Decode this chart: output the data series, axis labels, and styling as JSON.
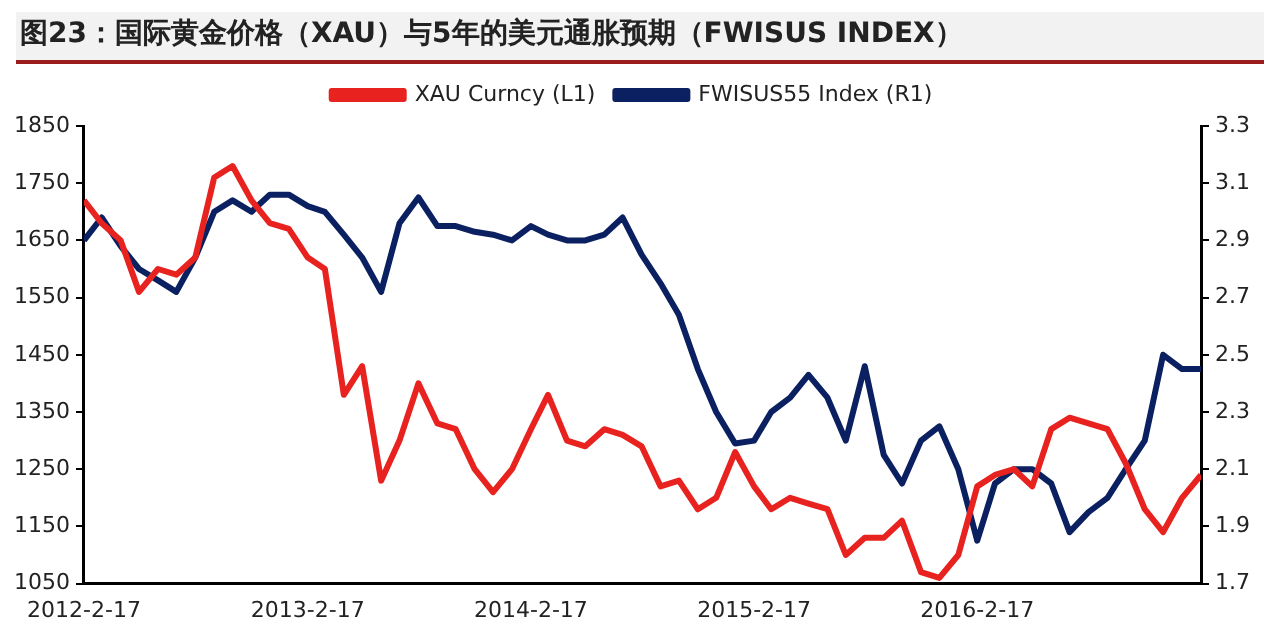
{
  "chart_data": {
    "type": "line",
    "title": "图23：国际黄金价格（XAU）与5年的美元通胀预期（FWISUS INDEX）",
    "x": [
      "2012-02-17",
      "2012-03-17",
      "2012-04-17",
      "2012-05-17",
      "2012-06-17",
      "2012-07-17",
      "2012-08-17",
      "2012-09-17",
      "2012-10-17",
      "2012-11-17",
      "2012-12-17",
      "2013-01-17",
      "2013-02-17",
      "2013-03-17",
      "2013-04-17",
      "2013-05-17",
      "2013-06-17",
      "2013-07-17",
      "2013-08-17",
      "2013-09-17",
      "2013-10-17",
      "2013-11-17",
      "2013-12-17",
      "2014-01-17",
      "2014-02-17",
      "2014-03-17",
      "2014-04-17",
      "2014-05-17",
      "2014-06-17",
      "2014-07-17",
      "2014-08-17",
      "2014-09-17",
      "2014-10-17",
      "2014-11-17",
      "2014-12-17",
      "2015-01-17",
      "2015-02-17",
      "2015-03-17",
      "2015-04-17",
      "2015-05-17",
      "2015-06-17",
      "2015-07-17",
      "2015-08-17",
      "2015-09-17",
      "2015-10-17",
      "2015-11-17",
      "2015-12-17",
      "2016-01-17",
      "2016-02-17",
      "2016-03-17",
      "2016-04-17",
      "2016-05-17",
      "2016-06-17",
      "2016-07-17",
      "2016-08-17",
      "2016-09-17",
      "2016-10-17",
      "2016-11-17",
      "2016-12-17",
      "2017-01-17",
      "2017-02-17"
    ],
    "series": [
      {
        "name": "XAU Curncy (L1)",
        "color": "#e8231f",
        "values": [
          1720,
          1680,
          1650,
          1560,
          1600,
          1590,
          1620,
          1760,
          1780,
          1720,
          1680,
          1670,
          1620,
          1600,
          1380,
          1430,
          1230,
          1300,
          1400,
          1330,
          1320,
          1250,
          1210,
          1250,
          1320,
          1380,
          1300,
          1290,
          1320,
          1310,
          1290,
          1220,
          1230,
          1180,
          1200,
          1280,
          1220,
          1180,
          1200,
          1190,
          1180,
          1100,
          1130,
          1130,
          1160,
          1070,
          1060,
          1100,
          1220,
          1240,
          1250,
          1220,
          1320,
          1340,
          1330,
          1320,
          1260,
          1180,
          1140,
          1200,
          1240
        ]
      },
      {
        "name": "FWISUS55 Index (R1)",
        "color": "#0b2060",
        "axis": "y2",
        "values": [
          2.9,
          2.98,
          2.88,
          2.8,
          2.76,
          2.72,
          2.84,
          3.0,
          3.04,
          3.0,
          3.06,
          3.06,
          3.02,
          3.0,
          2.92,
          2.84,
          2.72,
          2.96,
          3.05,
          2.95,
          2.95,
          2.93,
          2.92,
          2.9,
          2.95,
          2.92,
          2.9,
          2.9,
          2.92,
          2.98,
          2.85,
          2.75,
          2.64,
          2.45,
          2.3,
          2.19,
          2.2,
          2.3,
          2.35,
          2.43,
          2.35,
          2.2,
          2.46,
          2.15,
          2.05,
          2.2,
          2.25,
          2.1,
          1.85,
          2.05,
          2.1,
          2.1,
          2.05,
          1.88,
          1.95,
          2.0,
          2.1,
          2.2,
          2.5,
          2.45,
          2.45
        ]
      }
    ],
    "xlim": [
      "2012-02-17",
      "2017-02-17"
    ],
    "xticks": [
      {
        "value": "2012-02-17",
        "label": "2012-2-17"
      },
      {
        "value": "2013-02-17",
        "label": "2013-2-17"
      },
      {
        "value": "2014-02-17",
        "label": "2014-2-17"
      },
      {
        "value": "2015-02-17",
        "label": "2015-2-17"
      },
      {
        "value": "2016-02-17",
        "label": "2016-2-17"
      }
    ],
    "ylim": [
      1050,
      1850
    ],
    "yticks": [
      1050,
      1150,
      1250,
      1350,
      1450,
      1550,
      1650,
      1750,
      1850
    ],
    "y2lim": [
      1.7,
      3.3
    ],
    "y2ticks": [
      1.7,
      1.9,
      2.1,
      2.3,
      2.5,
      2.7,
      2.9,
      3.1,
      3.3
    ],
    "legend": "top",
    "grid": false,
    "marker": "none",
    "line_style": "solid"
  }
}
